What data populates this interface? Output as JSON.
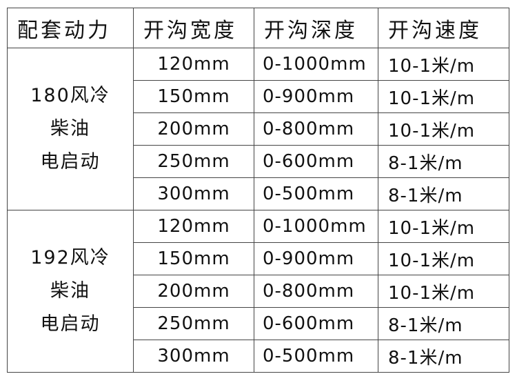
{
  "headers": [
    "配套动力",
    "开沟宽度",
    "开沟深度",
    "开沟速度"
  ],
  "groups": [
    {
      "power": [
        "180风冷",
        "柴油",
        "电启动"
      ],
      "rows": [
        {
          "width": "120mm",
          "depth": "0-1000mm",
          "speed": "10-1米/m"
        },
        {
          "width": "150mm",
          "depth": "0-900mm",
          "speed": "10-1米/m"
        },
        {
          "width": "200mm",
          "depth": "0-800mm",
          "speed": "10-1米/m"
        },
        {
          "width": "250mm",
          "depth": "0-600mm",
          "speed": "8-1米/m"
        },
        {
          "width": "300mm",
          "depth": "0-500mm",
          "speed": "8-1米/m"
        }
      ]
    },
    {
      "power": [
        "192风冷",
        "柴油",
        "电启动"
      ],
      "rows": [
        {
          "width": "120mm",
          "depth": "0-1000mm",
          "speed": "10-1米/m"
        },
        {
          "width": "150mm",
          "depth": "0-900mm",
          "speed": "10-1米/m"
        },
        {
          "width": "200mm",
          "depth": "0-800mm",
          "speed": "10-1米/m"
        },
        {
          "width": "250mm",
          "depth": "0-600mm",
          "speed": "8-1米/m"
        },
        {
          "width": "300mm",
          "depth": "0-500mm",
          "speed": "8-1米/m"
        }
      ]
    }
  ]
}
